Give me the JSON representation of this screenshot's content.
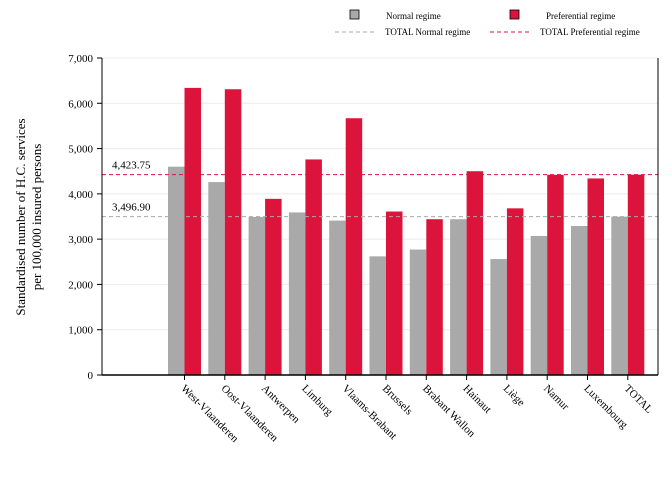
{
  "chart_data": {
    "type": "bar",
    "title": "",
    "xlabel": "",
    "ylabel": "Standardised number of H.C. services per 100,000 insured persons",
    "ylabel_lines": [
      "Standardised number of H.C. services",
      "per 100,000 insured persons"
    ],
    "ylim": [
      0,
      7000
    ],
    "yticks": [
      0,
      1000,
      2000,
      3000,
      4000,
      5000,
      6000,
      7000
    ],
    "ytick_labels": [
      "0",
      "1,000",
      "2,000",
      "3,000",
      "4,000",
      "5,000",
      "6,000",
      "7,000"
    ],
    "grid": true,
    "legend_position": "top",
    "categories": [
      "West-Vlaanderen",
      "Oost-Vlaanderen",
      "Antwerpen",
      "Limburg",
      "Vlaams-Brabant",
      "Brussels",
      "Brabant Wallon",
      "Hainaut",
      "Liège",
      "Namur",
      "Luxembourg",
      "TOTAL"
    ],
    "series": [
      {
        "name": "Normal regime",
        "color": "#a9a9a9",
        "values": [
          4600,
          4260,
          3490,
          3590,
          3410,
          2620,
          2770,
          3440,
          2560,
          3070,
          3290,
          3497
        ]
      },
      {
        "name": "Preferential regime",
        "color": "#dc143c",
        "values": [
          6340,
          6310,
          3890,
          4760,
          5670,
          3610,
          3440,
          4500,
          3680,
          4420,
          4340,
          4424
        ]
      }
    ],
    "reference_lines": [
      {
        "name": "TOTAL Normal regime",
        "value": 3496.9,
        "label": "3,496.90",
        "color": "#a9a9a9"
      },
      {
        "name": "TOTAL Preferential regime",
        "value": 4423.75,
        "label": "4,423.75",
        "color": "#dc143c"
      }
    ]
  }
}
